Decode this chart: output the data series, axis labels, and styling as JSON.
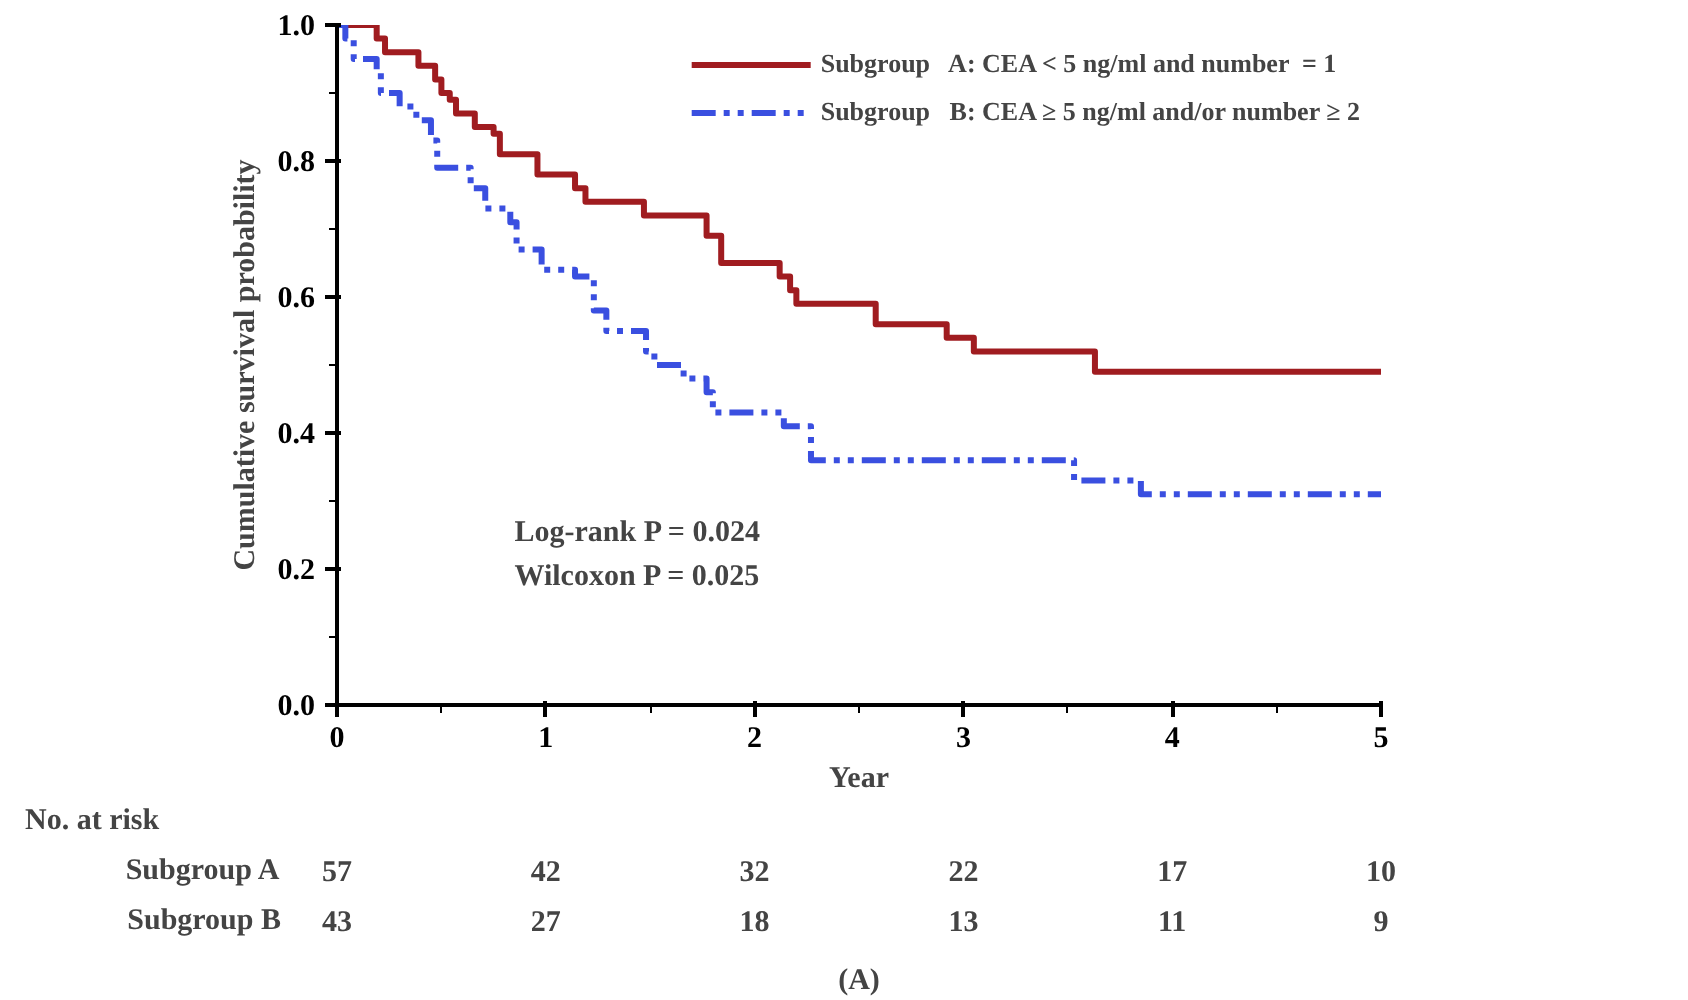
{
  "chart_data": {
    "type": "step",
    "xlabel": "Year",
    "ylabel": "Cumulative survival probability",
    "xlim": [
      0,
      5
    ],
    "ylim": [
      0,
      1.0
    ],
    "xticks": [
      0,
      {
        "value": 0.5,
        "label": null
      },
      1,
      {
        "value": 1.5,
        "label": null
      },
      2,
      {
        "value": 2.5,
        "label": null
      },
      3,
      {
        "value": 3.5,
        "label": null
      },
      4,
      {
        "value": 4.5,
        "label": null
      },
      5
    ],
    "yticks": [
      {
        "value": 0,
        "label": "0.0"
      },
      {
        "value": 0.1,
        "label": null
      },
      {
        "value": 0.2,
        "label": "0.2"
      },
      {
        "value": 0.3,
        "label": null
      },
      {
        "value": 0.4,
        "label": "0.4"
      },
      {
        "value": 0.5,
        "label": null
      },
      {
        "value": 0.6,
        "label": "0.6"
      },
      {
        "value": 0.7,
        "label": null
      },
      {
        "value": 0.8,
        "label": "0.8"
      },
      {
        "value": 0.9,
        "label": null
      },
      {
        "value": 1.0,
        "label": "1.0"
      }
    ],
    "grid": false,
    "legend": "top right",
    "series": [
      {
        "name": "Subgroup   A: CEA < 5 ng/ml and number  = 1",
        "color": "#a01c20",
        "line_style": "solid",
        "x": [
          0,
          0.19,
          0.23,
          0.39,
          0.47,
          0.5,
          0.54,
          0.57,
          0.66,
          0.75,
          0.78,
          0.96,
          1.14,
          1.19,
          1.47,
          1.77,
          1.84,
          2.12,
          2.17,
          2.2,
          2.58,
          2.92,
          3.05,
          3.63,
          5
        ],
        "values": [
          1.0,
          0.98,
          0.96,
          0.94,
          0.92,
          0.9,
          0.89,
          0.87,
          0.85,
          0.84,
          0.81,
          0.78,
          0.76,
          0.74,
          0.72,
          0.69,
          0.65,
          0.63,
          0.61,
          0.59,
          0.56,
          0.54,
          0.52,
          0.49,
          0.49
        ]
      },
      {
        "name": "Subgroup   B: CEA ≥ 5 ng/ml and/or number ≥ 2",
        "color": "#3a4fe0",
        "line_style": "dashed",
        "x": [
          0,
          0.04,
          0.08,
          0.19,
          0.21,
          0.3,
          0.38,
          0.45,
          0.48,
          0.64,
          0.71,
          0.83,
          0.86,
          0.98,
          1.14,
          1.23,
          1.29,
          1.48,
          1.52,
          1.66,
          1.77,
          1.8,
          2.14,
          2.27,
          3.53,
          3.85,
          5
        ],
        "values": [
          1.0,
          0.98,
          0.95,
          0.93,
          0.9,
          0.88,
          0.86,
          0.83,
          0.79,
          0.76,
          0.73,
          0.71,
          0.67,
          0.64,
          0.63,
          0.58,
          0.55,
          0.52,
          0.5,
          0.48,
          0.46,
          0.43,
          0.41,
          0.36,
          0.33,
          0.31,
          0.31
        ]
      }
    ],
    "annotations": [
      "Log-rank  P = 0.024",
      "Wilcoxon   P = 0.025",
      "No. at risk",
      "Subgroup A",
      "57",
      "42",
      "32",
      "22",
      "17",
      "10",
      "Subgroup B",
      "43",
      "27",
      "18",
      "13",
      "11",
      "9",
      "(A)"
    ]
  }
}
